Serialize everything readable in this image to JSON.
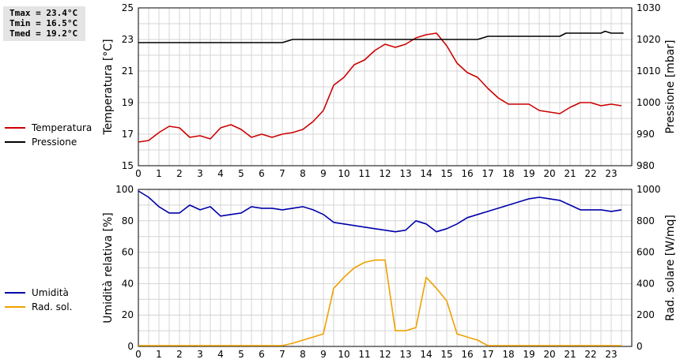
{
  "stats": {
    "tmax": "Tmax = 23.4°C",
    "tmin": "Tmin = 16.5°C",
    "tmed": "Tmed = 19.2°C"
  },
  "colors": {
    "temperature": "#cc0000",
    "pressure": "#000000",
    "humidity": "#0000aa",
    "radiation": "#f0a000",
    "grid": "#d4d4d4",
    "frame": "#000000"
  },
  "chart_data": [
    {
      "type": "line",
      "ylabel": "Temperatura [°C]",
      "ylabel_right": "Pressione [mbar]",
      "xlim": [
        0,
        24
      ],
      "x_ticks": [
        0,
        1,
        2,
        3,
        4,
        5,
        6,
        7,
        8,
        9,
        10,
        11,
        12,
        13,
        14,
        15,
        16,
        17,
        18,
        19,
        20,
        21,
        22,
        23
      ],
      "ylim": [
        15,
        25
      ],
      "y_ticks": [
        15,
        17,
        19,
        21,
        23,
        25
      ],
      "ylim_right": [
        980,
        1030
      ],
      "y_ticks_right": [
        980,
        990,
        1000,
        1010,
        1020,
        1030
      ],
      "grid": true,
      "legend_position": "left",
      "series": [
        {
          "name": "Temperatura",
          "axis": "left",
          "color": "#cc0000",
          "x": [
            0,
            0.5,
            1,
            1.5,
            2,
            2.5,
            3,
            3.5,
            4,
            4.5,
            5,
            5.5,
            6,
            6.5,
            7,
            7.5,
            8,
            8.5,
            9,
            9.5,
            10,
            10.5,
            11,
            11.5,
            12,
            12.5,
            13,
            13.5,
            14,
            14.5,
            15,
            15.5,
            16,
            16.5,
            17,
            17.5,
            18,
            18.5,
            19,
            19.5,
            20,
            20.5,
            21,
            21.5,
            22,
            22.5,
            23,
            23.5
          ],
          "values": [
            16.5,
            16.6,
            17.1,
            17.5,
            17.4,
            16.8,
            16.9,
            16.7,
            17.4,
            17.6,
            17.3,
            16.8,
            17.0,
            16.8,
            17.0,
            17.1,
            17.3,
            17.8,
            18.5,
            20.1,
            20.6,
            21.4,
            21.7,
            22.3,
            22.7,
            22.5,
            22.7,
            23.1,
            23.3,
            23.4,
            22.6,
            21.5,
            20.9,
            20.6,
            19.9,
            19.3,
            18.9,
            18.9,
            18.9,
            18.5,
            18.4,
            18.3,
            18.7,
            19.0,
            19.0,
            18.8,
            18.9,
            18.8
          ]
        },
        {
          "name": "Pressione",
          "axis": "right",
          "color": "#000000",
          "x": [
            0,
            7,
            7.3,
            7.5,
            16.5,
            16.8,
            17,
            20.5,
            20.8,
            22.5,
            22.7,
            23,
            23.6
          ],
          "values": [
            1019,
            1019,
            1019.6,
            1020,
            1020,
            1020.6,
            1021,
            1021,
            1022,
            1022,
            1022.6,
            1022,
            1022
          ]
        }
      ]
    },
    {
      "type": "line",
      "ylabel": "Umidità relativa [%]",
      "ylabel_right": "Rad. solare [W/mq]",
      "xlim": [
        0,
        24
      ],
      "x_ticks": [
        0,
        1,
        2,
        3,
        4,
        5,
        6,
        7,
        8,
        9,
        10,
        11,
        12,
        13,
        14,
        15,
        16,
        17,
        18,
        19,
        20,
        21,
        22,
        23
      ],
      "ylim": [
        0,
        100
      ],
      "y_ticks": [
        0,
        20,
        40,
        60,
        80,
        100
      ],
      "ylim_right": [
        0,
        1000
      ],
      "y_ticks_right": [
        0,
        200,
        400,
        600,
        800,
        1000
      ],
      "grid": true,
      "legend_position": "left",
      "series": [
        {
          "name": "Umidità",
          "axis": "left",
          "color": "#0000aa",
          "x": [
            0,
            0.5,
            1,
            1.5,
            2,
            2.5,
            3,
            3.5,
            4,
            4.5,
            5,
            5.5,
            6,
            6.5,
            7,
            7.5,
            8,
            8.5,
            9,
            9.5,
            10,
            10.5,
            11,
            11.5,
            12,
            12.5,
            13,
            13.5,
            14,
            14.5,
            15,
            15.5,
            16,
            16.5,
            17,
            17.5,
            18,
            18.5,
            19,
            19.5,
            20,
            20.5,
            21,
            21.5,
            22,
            22.5,
            23,
            23.5
          ],
          "values": [
            99,
            95,
            89,
            85,
            85,
            90,
            87,
            89,
            83,
            84,
            85,
            89,
            88,
            88,
            87,
            88,
            89,
            87,
            84,
            79,
            78,
            77,
            76,
            75,
            74,
            73,
            74,
            80,
            78,
            73,
            75,
            78,
            82,
            84,
            86,
            88,
            90,
            92,
            94,
            95,
            94,
            93,
            90,
            87,
            87,
            87,
            86,
            87
          ]
        },
        {
          "name": "Rad. sol.",
          "axis": "right",
          "color": "#f0a000",
          "x": [
            0,
            7,
            7.5,
            8,
            8.5,
            9,
            9.5,
            10,
            10.5,
            11,
            11.5,
            12,
            12.5,
            13,
            13.5,
            14,
            14.5,
            15,
            15.5,
            16,
            16.5,
            17,
            23.5
          ],
          "values": [
            5,
            5,
            20,
            40,
            60,
            80,
            370,
            440,
            500,
            535,
            550,
            550,
            100,
            100,
            120,
            440,
            370,
            290,
            80,
            60,
            40,
            5,
            5
          ]
        }
      ]
    }
  ]
}
